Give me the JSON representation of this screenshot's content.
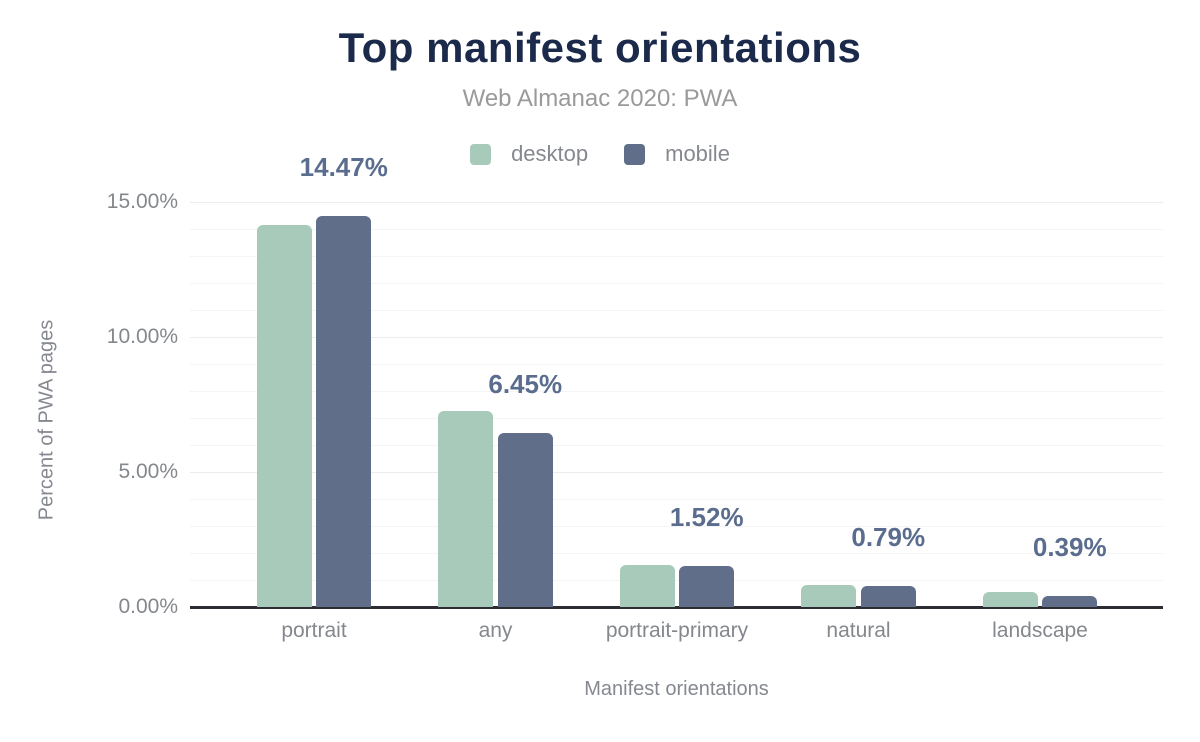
{
  "chart_data": {
    "type": "bar",
    "title": "Top manifest orientations",
    "subtitle": "Web Almanac 2020: PWA",
    "xlabel": "Manifest orientations",
    "ylabel": "Percent of PWA pages",
    "categories": [
      "portrait",
      "any",
      "portrait-primary",
      "natural",
      "landscape"
    ],
    "series": [
      {
        "name": "desktop",
        "color": "#a8cabb",
        "values": [
          14.16,
          7.25,
          1.57,
          0.81,
          0.55
        ]
      },
      {
        "name": "mobile",
        "color": "#606e8a",
        "values": [
          14.47,
          6.45,
          1.52,
          0.79,
          0.39
        ]
      }
    ],
    "value_labels": [
      "14.47%",
      "6.45%",
      "1.52%",
      "0.79%",
      "0.39%"
    ],
    "value_labels_series": "mobile",
    "y_ticks": [
      {
        "value": 0,
        "label": "0.00%"
      },
      {
        "value": 5,
        "label": "5.00%"
      },
      {
        "value": 10,
        "label": "10.00%"
      },
      {
        "value": 15,
        "label": "15.00%"
      }
    ],
    "ylim": [
      0,
      15
    ],
    "grid": "horizontal minor gridlines every 1%",
    "legend_position": "top-center"
  },
  "colors": {
    "title": "#1b2a4a",
    "subtitle": "#9a9a9a",
    "axis_text": "#84888d",
    "value_label": "#5b6d8e",
    "axis_line": "#2c2c33",
    "desktop": "#a8cabb",
    "mobile": "#606e8a",
    "background": "#ffffff"
  }
}
